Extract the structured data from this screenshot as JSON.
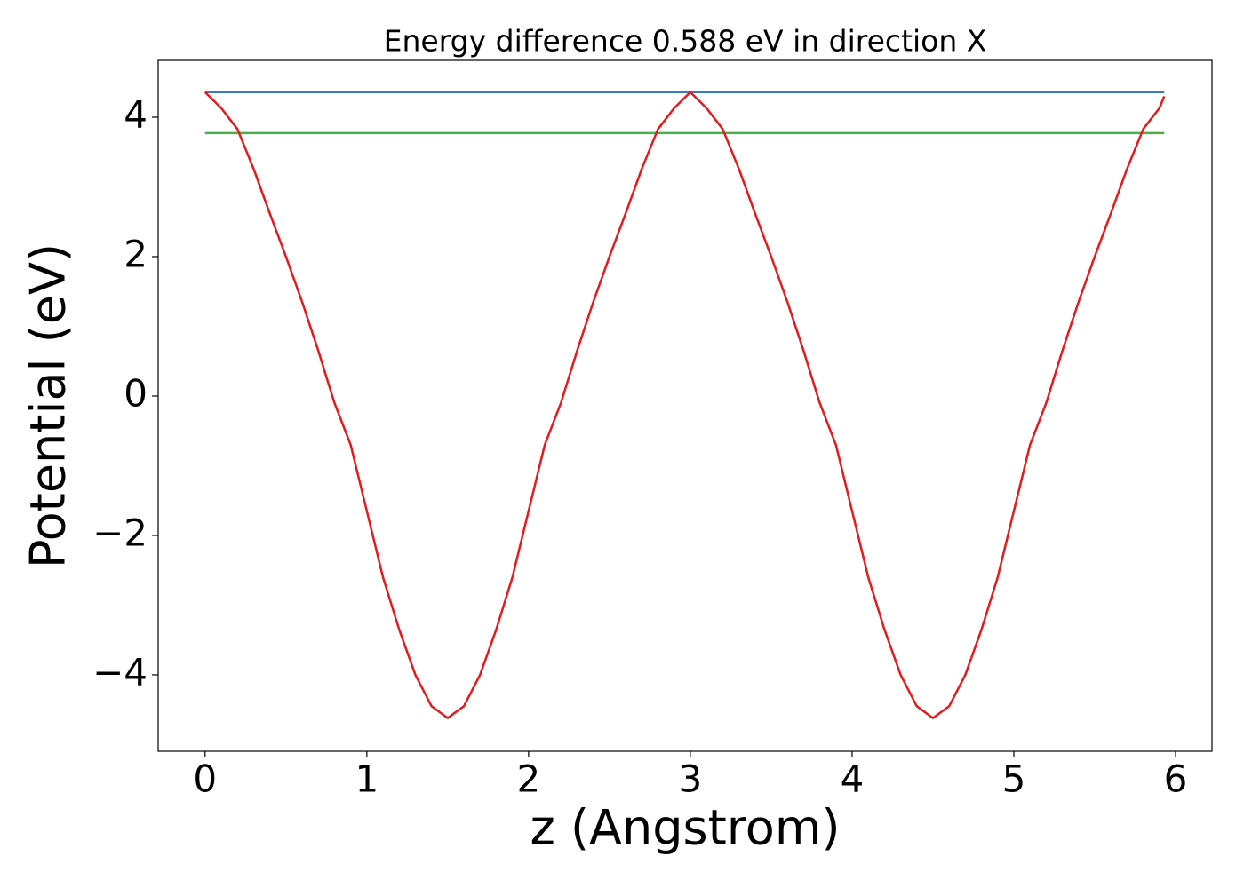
{
  "chart_data": {
    "type": "line",
    "title": "Energy difference 0.588 eV in direction X",
    "xlabel": "z (Angstrom)",
    "ylabel": "Potential (eV)",
    "xlim": [
      -0.29,
      6.225
    ],
    "ylim": [
      -5.096,
      4.815
    ],
    "xticks": [
      0,
      1,
      2,
      3,
      4,
      5,
      6
    ],
    "yticks": [
      {
        "value": -4,
        "label": "−4"
      },
      {
        "value": -2,
        "label": "−2"
      },
      0,
      2,
      4
    ],
    "grid": false,
    "series": [
      {
        "color": "#377eb8",
        "x": [
          0,
          5.93
        ],
        "values": [
          4.36,
          4.36
        ]
      },
      {
        "color": "#4daf4a",
        "x": [
          0,
          5.93
        ],
        "values": [
          3.772,
          3.772
        ]
      },
      {
        "color": "#e41a1c",
        "x": [
          0,
          0.1,
          0.2,
          0.3,
          0.4,
          0.5,
          0.6,
          0.7,
          0.8,
          0.9,
          1.0,
          1.1,
          1.2,
          1.3,
          1.4,
          1.5,
          1.6,
          1.7,
          1.8,
          1.9,
          2.0,
          2.1,
          2.2,
          2.3,
          2.4,
          2.5,
          2.6,
          2.7,
          2.8,
          2.9,
          3.0,
          3.1,
          3.2,
          3.3,
          3.4,
          3.5,
          3.6,
          3.7,
          3.8,
          3.9,
          4.0,
          4.1,
          4.2,
          4.3,
          4.4,
          4.5,
          4.6,
          4.7,
          4.8,
          4.9,
          5.0,
          5.1,
          5.2,
          5.3,
          5.4,
          5.5,
          5.6,
          5.7,
          5.8,
          5.9,
          5.93
        ],
        "values": [
          4.36,
          4.13,
          3.83,
          3.26,
          2.62,
          2.0,
          1.35,
          0.65,
          -0.1,
          -0.7,
          -1.65,
          -2.6,
          -3.35,
          -4.0,
          -4.45,
          -4.62,
          -4.45,
          -4.0,
          -3.35,
          -2.6,
          -1.65,
          -0.7,
          -0.1,
          0.65,
          1.35,
          2.0,
          2.62,
          3.26,
          3.83,
          4.13,
          4.36,
          4.13,
          3.83,
          3.26,
          2.62,
          2.0,
          1.35,
          0.65,
          -0.1,
          -0.7,
          -1.65,
          -2.6,
          -3.35,
          -4.0,
          -4.45,
          -4.62,
          -4.45,
          -4.0,
          -3.35,
          -2.6,
          -1.65,
          -0.7,
          -0.1,
          0.65,
          1.35,
          2.0,
          2.62,
          3.26,
          3.83,
          4.13,
          4.3
        ]
      }
    ]
  }
}
